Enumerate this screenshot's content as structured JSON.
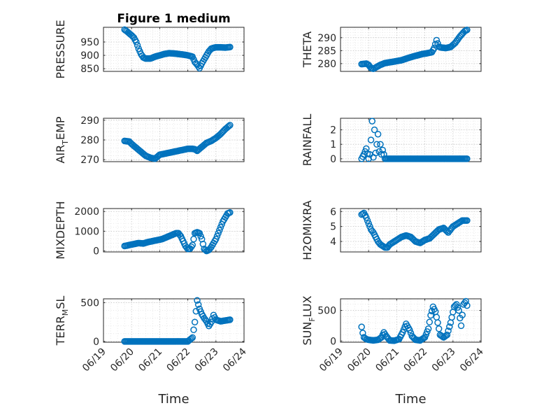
{
  "chart_data": [
    {
      "type": "scatter",
      "title": "Figure 1 medium",
      "ylabel": "PRESSURE",
      "ylim": [
        840,
        1005
      ],
      "yticks": [
        850,
        900,
        950
      ],
      "x_ticklabels_shown": false,
      "x": [
        "06/19",
        "06/20",
        "06/21",
        "06/22",
        "06/23",
        "06/24"
      ],
      "series": [
        {
          "color": "#0072BD",
          "x": [
            "06/19 18:00",
            "06/19 20:00",
            "06/19 22:00",
            "06/20 00:00",
            "06/20 02:00",
            "06/20 04:00",
            "06/20 06:00",
            "06/20 08:00",
            "06/20 10:00",
            "06/20 12:00",
            "06/20 16:00",
            "06/20 20:00",
            "06/21 00:00",
            "06/21 04:00",
            "06/21 08:00",
            "06/21 12:00",
            "06/21 16:00",
            "06/21 20:00",
            "06/22 00:00",
            "06/22 04:00",
            "06/22 06:00",
            "06/22 08:00",
            "06/22 10:00",
            "06/22 12:00",
            "06/22 14:00",
            "06/22 16:00",
            "06/22 18:00",
            "06/22 20:00",
            "06/22 22:00",
            "06/23 00:00",
            "06/23 04:00",
            "06/23 08:00",
            "06/23 12:00"
          ],
          "values": [
            996,
            990,
            982,
            975,
            966,
            950,
            925,
            905,
            892,
            888,
            888,
            895,
            900,
            905,
            908,
            907,
            905,
            903,
            900,
            895,
            875,
            865,
            852,
            870,
            885,
            900,
            915,
            925,
            928,
            930,
            930,
            929,
            931
          ]
        }
      ]
    },
    {
      "type": "scatter",
      "ylabel": "THETA",
      "ylim": [
        277,
        294
      ],
      "yticks": [
        280,
        285,
        290
      ],
      "x_ticklabels_shown": false,
      "x": [
        "06/19",
        "06/20",
        "06/21",
        "06/22",
        "06/23",
        "06/24"
      ],
      "series": [
        {
          "color": "#0072BD",
          "x": [
            "06/19 18:00",
            "06/19 22:00",
            "06/20 00:00",
            "06/20 02:00",
            "06/20 04:00",
            "06/20 06:00",
            "06/20 10:00",
            "06/20 14:00",
            "06/20 18:00",
            "06/20 22:00",
            "06/21 04:00",
            "06/21 10:00",
            "06/21 16:00",
            "06/21 22:00",
            "06/22 02:00",
            "06/22 06:00",
            "06/22 08:00",
            "06/22 10:00",
            "06/22 12:00",
            "06/22 14:00",
            "06/22 18:00",
            "06/22 22:00",
            "06/23 02:00",
            "06/23 06:00",
            "06/23 10:00",
            "06/23 12:00"
          ],
          "values": [
            279.8,
            280,
            279.5,
            278.3,
            278.0,
            278.5,
            279.5,
            280.2,
            280.5,
            280.8,
            281.3,
            282.2,
            283.0,
            283.7,
            284.0,
            284.4,
            286.0,
            289.0,
            286.5,
            286.2,
            286.0,
            286.4,
            288.0,
            290.5,
            292.5,
            293.0
          ]
        }
      ]
    },
    {
      "type": "scatter",
      "ylabel": "AIR_TEMP",
      "ylim": [
        269,
        291
      ],
      "yticks": [
        270,
        280,
        290
      ],
      "x_ticklabels_shown": false,
      "x": [
        "06/19",
        "06/20",
        "06/21",
        "06/22",
        "06/23",
        "06/24"
      ],
      "series": [
        {
          "color": "#0072BD",
          "x": [
            "06/19 18:00",
            "06/19 22:00",
            "06/20 00:00",
            "06/20 04:00",
            "06/20 08:00",
            "06/20 12:00",
            "06/20 16:00",
            "06/20 20:00",
            "06/21 00:00",
            "06/21 04:00",
            "06/21 08:00",
            "06/21 12:00",
            "06/21 16:00",
            "06/21 20:00",
            "06/22 00:00",
            "06/22 04:00",
            "06/22 06:00",
            "06/22 08:00",
            "06/22 10:00",
            "06/22 12:00",
            "06/22 16:00",
            "06/22 20:00",
            "06/23 00:00",
            "06/23 04:00",
            "06/23 08:00",
            "06/23 12:00"
          ],
          "values": [
            279.5,
            279.2,
            278.0,
            276.0,
            274.0,
            272.0,
            271.0,
            270.5,
            272.5,
            273.0,
            273.5,
            274.0,
            274.5,
            275.0,
            275.5,
            275.5,
            275.3,
            274.5,
            275.5,
            276.5,
            278.5,
            279.5,
            281.0,
            283.0,
            285.5,
            287.5
          ]
        }
      ]
    },
    {
      "type": "scatter",
      "ylabel": "RAINFALL",
      "ylim": [
        -0.2,
        2.8
      ],
      "yticks": [
        0,
        1,
        2
      ],
      "x_ticklabels_shown": false,
      "x": [
        "06/19",
        "06/20",
        "06/21",
        "06/22",
        "06/23",
        "06/24"
      ],
      "series": [
        {
          "color": "#0072BD",
          "x": [
            "06/19 18:00",
            "06/19 20:00",
            "06/19 22:00",
            "06/20 00:00",
            "06/20 01:00",
            "06/20 02:00",
            "06/20 03:00",
            "06/20 04:00",
            "06/20 05:00",
            "06/20 06:00",
            "06/20 07:00",
            "06/20 08:00",
            "06/20 09:00",
            "06/20 10:00",
            "06/20 11:00",
            "06/20 12:00",
            "06/20 14:00",
            "06/20 18:00",
            "06/21 00:00",
            "06/21 06:00",
            "06/21 12:00",
            "06/21 18:00",
            "06/22 00:00",
            "06/22 06:00",
            "06/22 12:00",
            "06/22 18:00",
            "06/23 00:00",
            "06/23 06:00",
            "06/23 12:00"
          ],
          "values": [
            0,
            0.3,
            0.7,
            0,
            0.3,
            1.3,
            2.6,
            0.1,
            2.0,
            0.4,
            1.0,
            1.7,
            0.5,
            1.0,
            0.3,
            0.6,
            0,
            0,
            0,
            0,
            0,
            0,
            0,
            0,
            0,
            0,
            0,
            0,
            0
          ]
        }
      ]
    },
    {
      "type": "scatter",
      "ylabel": "MIXDEPTH",
      "ylim": [
        -50,
        2150
      ],
      "yticks": [
        0,
        1000,
        2000
      ],
      "x_ticklabels_shown": false,
      "x": [
        "06/19",
        "06/20",
        "06/21",
        "06/22",
        "06/23",
        "06/24"
      ],
      "series": [
        {
          "color": "#0072BD",
          "x": [
            "06/19 18:00",
            "06/19 22:00",
            "06/20 02:00",
            "06/20 06:00",
            "06/20 10:00",
            "06/20 14:00",
            "06/20 18:00",
            "06/20 22:00",
            "06/21 02:00",
            "06/21 06:00",
            "06/21 10:00",
            "06/21 14:00",
            "06/21 16:00",
            "06/21 18:00",
            "06/21 20:00",
            "06/21 22:00",
            "06/22 00:00",
            "06/22 02:00",
            "06/22 04:00",
            "06/22 06:00",
            "06/22 08:00",
            "06/22 10:00",
            "06/22 12:00",
            "06/22 14:00",
            "06/22 16:00",
            "06/22 18:00",
            "06/22 20:00",
            "06/22 22:00",
            "06/23 00:00",
            "06/23 02:00",
            "06/23 04:00",
            "06/23 06:00",
            "06/23 08:00",
            "06/23 10:00",
            "06/23 12:00"
          ],
          "values": [
            250,
            300,
            350,
            400,
            380,
            450,
            500,
            550,
            600,
            700,
            800,
            900,
            900,
            750,
            500,
            250,
            100,
            120,
            300,
            900,
            950,
            900,
            600,
            100,
            0,
            50,
            200,
            400,
            600,
            900,
            1200,
            1500,
            1700,
            1900,
            1950
          ]
        }
      ]
    },
    {
      "type": "scatter",
      "ylabel": "H2OMIXRA",
      "ylim": [
        3.3,
        6.2
      ],
      "yticks": [
        4,
        5,
        6
      ],
      "x_ticklabels_shown": false,
      "x": [
        "06/19",
        "06/20",
        "06/21",
        "06/22",
        "06/23",
        "06/24"
      ],
      "series": [
        {
          "color": "#0072BD",
          "x": [
            "06/19 18:00",
            "06/19 20:00",
            "06/19 22:00",
            "06/20 00:00",
            "06/20 02:00",
            "06/20 04:00",
            "06/20 06:00",
            "06/20 08:00",
            "06/20 10:00",
            "06/20 12:00",
            "06/20 14:00",
            "06/20 16:00",
            "06/20 18:00",
            "06/20 20:00",
            "06/21 00:00",
            "06/21 04:00",
            "06/21 08:00",
            "06/21 12:00",
            "06/21 16:00",
            "06/21 20:00",
            "06/22 00:00",
            "06/22 04:00",
            "06/22 08:00",
            "06/22 12:00",
            "06/22 16:00",
            "06/22 20:00",
            "06/23 00:00",
            "06/23 04:00",
            "06/23 08:00",
            "06/23 12:00"
          ],
          "values": [
            5.8,
            5.9,
            5.6,
            5.2,
            4.8,
            4.6,
            4.3,
            4.0,
            3.8,
            3.7,
            3.6,
            3.6,
            3.8,
            3.9,
            4.1,
            4.3,
            4.4,
            4.3,
            4.0,
            3.9,
            4.1,
            4.2,
            4.5,
            4.8,
            4.9,
            4.6,
            5.0,
            5.2,
            5.4,
            5.4
          ]
        }
      ]
    },
    {
      "type": "scatter",
      "ylabel": "TERR_MSL",
      "ylim": [
        -10,
        550
      ],
      "yticks": [
        0,
        500
      ],
      "x_ticklabels_shown": false,
      "x": [
        "06/19",
        "06/20",
        "06/21",
        "06/22",
        "06/23",
        "06/24"
      ],
      "series": [
        {
          "color": "#0072BD",
          "x": [
            "06/19 18:00",
            "06/20 00:00",
            "06/20 06:00",
            "06/20 12:00",
            "06/20 18:00",
            "06/21 00:00",
            "06/21 06:00",
            "06/21 12:00",
            "06/21 18:00",
            "06/22 00:00",
            "06/22 04:00",
            "06/22 06:00",
            "06/22 08:00",
            "06/22 10:00",
            "06/22 12:00",
            "06/22 14:00",
            "06/22 16:00",
            "06/22 18:00",
            "06/22 20:00",
            "06/22 22:00",
            "06/23 00:00",
            "06/23 04:00",
            "06/23 08:00",
            "06/23 12:00"
          ],
          "values": [
            0,
            0,
            0,
            0,
            0,
            0,
            0,
            0,
            0,
            0,
            50,
            250,
            530,
            420,
            350,
            300,
            260,
            200,
            250,
            340,
            280,
            260,
            270,
            280
          ]
        }
      ]
    },
    {
      "type": "scatter",
      "ylabel": "SUN_FLUX",
      "ylim": [
        -20,
        690
      ],
      "yticks": [
        0,
        500
      ],
      "x_ticklabels_shown": false,
      "x": [
        "06/19",
        "06/20",
        "06/21",
        "06/22",
        "06/23",
        "06/24"
      ],
      "series": [
        {
          "color": "#0072BD",
          "x": [
            "06/19 18:00",
            "06/19 19:00",
            "06/19 20:00",
            "06/19 22:00",
            "06/20 00:00",
            "06/20 04:00",
            "06/20 08:00",
            "06/20 11:00",
            "06/20 13:00",
            "06/20 15:00",
            "06/20 18:00",
            "06/20 22:00",
            "06/21 02:00",
            "06/21 05:00",
            "06/21 08:00",
            "06/21 11:00",
            "06/21 13:00",
            "06/21 16:00",
            "06/21 20:00",
            "06/22 00:00",
            "06/22 03:00",
            "06/22 05:00",
            "06/22 07:00",
            "06/22 09:00",
            "06/22 11:00",
            "06/22 13:00",
            "06/22 16:00",
            "06/22 19:00",
            "06/22 22:00",
            "06/23 01:00",
            "06/23 03:00",
            "06/23 05:00",
            "06/23 07:00",
            "06/23 09:00",
            "06/23 11:00",
            "06/23 12:00"
          ],
          "values": [
            230,
            130,
            60,
            30,
            20,
            10,
            20,
            60,
            140,
            80,
            10,
            5,
            30,
            140,
            280,
            180,
            80,
            20,
            10,
            60,
            200,
            420,
            560,
            480,
            300,
            100,
            60,
            100,
            300,
            560,
            600,
            500,
            250,
            600,
            650,
            580
          ]
        }
      ]
    }
  ],
  "titles": {
    "figure_title": "Figure 1 medium",
    "x_label_left": "Time",
    "x_label_right": "Time",
    "bottom_tick_labels": [
      "06/19",
      "06/20",
      "06/21",
      "06/22",
      "06/23",
      "06/24"
    ]
  },
  "colors": {
    "marker": "#0072BD",
    "axes": "#262626",
    "background": "#ffffff"
  }
}
